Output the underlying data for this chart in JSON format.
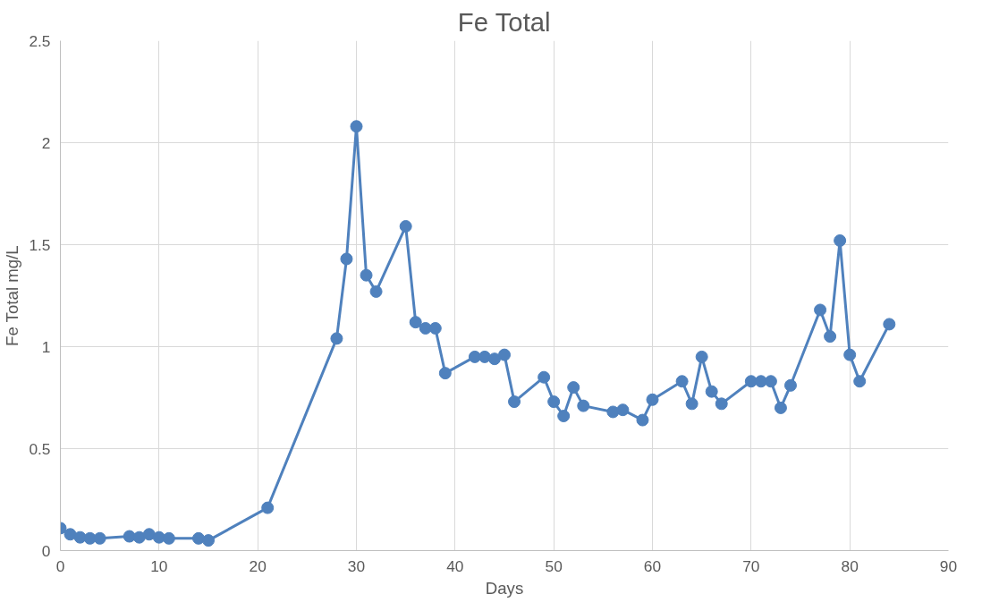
{
  "chart_data": {
    "type": "line",
    "title": "Fe Total",
    "xlabel": "Days",
    "ylabel": "Fe Total mg/L",
    "x": [
      0,
      1,
      2,
      3,
      4,
      7,
      8,
      9,
      10,
      11,
      14,
      15,
      21,
      28,
      29,
      30,
      31,
      32,
      35,
      36,
      37,
      38,
      39,
      42,
      43,
      44,
      45,
      46,
      49,
      50,
      51,
      52,
      53,
      56,
      57,
      59,
      60,
      63,
      64,
      65,
      66,
      67,
      70,
      71,
      72,
      73,
      74,
      77,
      78,
      79,
      80,
      81,
      84
    ],
    "series": [
      {
        "color": "#4f81bd",
        "values": [
          0.11,
          0.08,
          0.065,
          0.06,
          0.06,
          0.07,
          0.065,
          0.08,
          0.065,
          0.06,
          0.06,
          0.05,
          0.21,
          1.04,
          1.43,
          2.08,
          1.35,
          1.27,
          1.59,
          1.12,
          1.09,
          1.09,
          0.87,
          0.95,
          0.95,
          0.94,
          0.96,
          0.73,
          0.85,
          0.73,
          0.66,
          0.8,
          0.71,
          0.68,
          0.69,
          0.64,
          0.74,
          0.83,
          0.72,
          0.95,
          0.78,
          0.72,
          0.83,
          0.83,
          0.83,
          0.7,
          0.81,
          1.18,
          1.05,
          1.52,
          0.96,
          0.83,
          1.11
        ]
      }
    ],
    "xlim": [
      0,
      90
    ],
    "xticks": [
      0,
      10,
      20,
      30,
      40,
      50,
      60,
      70,
      80,
      90
    ],
    "ylim": [
      0,
      2.5
    ],
    "yticks": [
      0,
      0.5,
      1,
      1.5,
      2,
      2.5
    ],
    "grid": true,
    "marker": "circle",
    "line_style": "solid"
  }
}
